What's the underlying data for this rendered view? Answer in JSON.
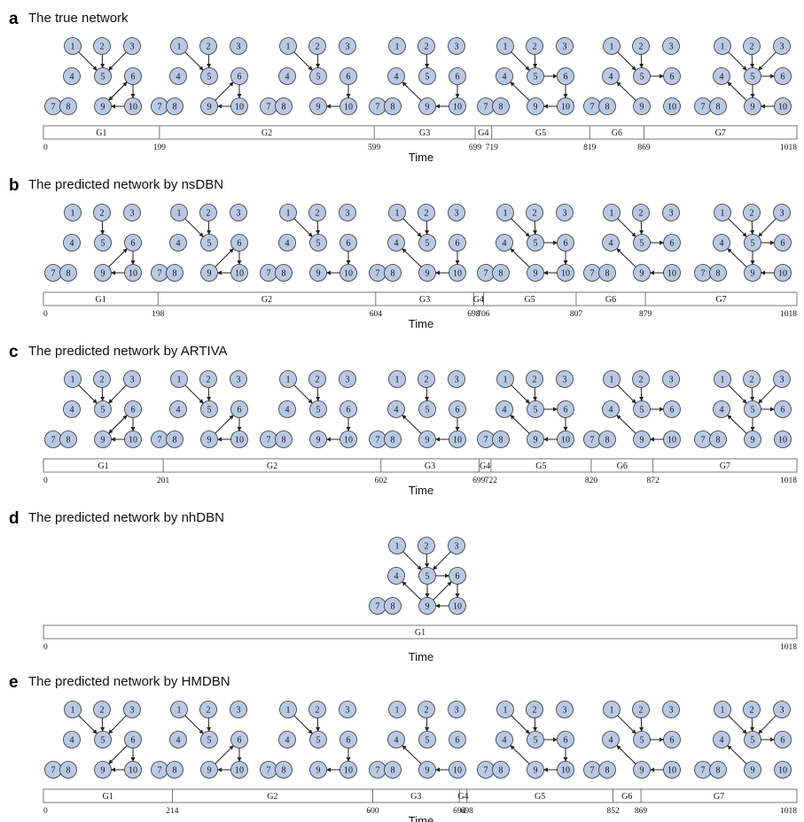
{
  "node_ids": [
    "1",
    "2",
    "3",
    "4",
    "5",
    "6",
    "7",
    "8",
    "9",
    "10"
  ],
  "colors": {
    "node_fill": "#b9c9e5",
    "node_stroke": "#333333",
    "edge": "#222222",
    "bar_stroke": "#555555"
  },
  "axis_label": "Time",
  "panels": [
    {
      "letter": "a",
      "title": "The true network",
      "segments": [
        {
          "label": "G1",
          "edges": [
            [
              1,
              5
            ],
            [
              2,
              5
            ],
            [
              3,
              5
            ],
            [
              6,
              9
            ],
            [
              6,
              10
            ],
            [
              9,
              6
            ],
            [
              10,
              9
            ]
          ]
        },
        {
          "label": "G2",
          "edges": [
            [
              2,
              5
            ],
            [
              1,
              5
            ],
            [
              9,
              6
            ],
            [
              6,
              10
            ],
            [
              10,
              9
            ]
          ]
        },
        {
          "label": "G3",
          "edges": [
            [
              1,
              5
            ],
            [
              2,
              5
            ],
            [
              6,
              10
            ],
            [
              10,
              9
            ]
          ]
        },
        {
          "label": "G4",
          "edges": [
            [
              2,
              5
            ],
            [
              9,
              4
            ],
            [
              6,
              10
            ],
            [
              10,
              9
            ]
          ]
        },
        {
          "label": "G5",
          "edges": [
            [
              1,
              5
            ],
            [
              2,
              5
            ],
            [
              5,
              6
            ],
            [
              9,
              4
            ],
            [
              6,
              10
            ],
            [
              10,
              9
            ]
          ]
        },
        {
          "label": "G6",
          "edges": [
            [
              2,
              5
            ],
            [
              5,
              6
            ],
            [
              9,
              4
            ],
            [
              1,
              5
            ]
          ]
        },
        {
          "label": "G7",
          "edges": [
            [
              1,
              5
            ],
            [
              2,
              5
            ],
            [
              3,
              5
            ],
            [
              5,
              6
            ],
            [
              5,
              9
            ],
            [
              9,
              4
            ],
            [
              10,
              9
            ]
          ]
        }
      ],
      "ticks": [
        "0",
        "199",
        "599",
        "699",
        "719",
        "819",
        "869",
        "1018"
      ]
    },
    {
      "letter": "b",
      "title": "The predicted network by nsDBN",
      "segments": [
        {
          "label": "G1",
          "edges": [
            [
              2,
              5
            ],
            [
              9,
              6
            ],
            [
              6,
              10
            ],
            [
              10,
              9
            ]
          ]
        },
        {
          "label": "G2",
          "edges": [
            [
              1,
              5
            ],
            [
              2,
              5
            ],
            [
              9,
              6
            ],
            [
              6,
              10
            ],
            [
              10,
              9
            ]
          ]
        },
        {
          "label": "G3",
          "edges": [
            [
              1,
              5
            ],
            [
              2,
              5
            ],
            [
              6,
              10
            ],
            [
              10,
              9
            ]
          ]
        },
        {
          "label": "G4",
          "edges": [
            [
              1,
              5
            ],
            [
              2,
              5
            ],
            [
              9,
              4
            ],
            [
              6,
              10
            ],
            [
              10,
              9
            ]
          ]
        },
        {
          "label": "G5",
          "edges": [
            [
              1,
              5
            ],
            [
              2,
              5
            ],
            [
              5,
              6
            ],
            [
              9,
              4
            ],
            [
              6,
              10
            ],
            [
              10,
              9
            ]
          ]
        },
        {
          "label": "G6",
          "edges": [
            [
              1,
              5
            ],
            [
              2,
              5
            ],
            [
              5,
              6
            ],
            [
              9,
              4
            ],
            [
              10,
              9
            ]
          ]
        },
        {
          "label": "G7",
          "edges": [
            [
              1,
              5
            ],
            [
              2,
              5
            ],
            [
              3,
              5
            ],
            [
              5,
              6
            ],
            [
              5,
              9
            ],
            [
              9,
              4
            ],
            [
              10,
              9
            ]
          ]
        }
      ],
      "ticks": [
        "0",
        "198",
        "604",
        "698",
        "706",
        "807",
        "879",
        "1018"
      ]
    },
    {
      "letter": "c",
      "title": "The predicted network by ARTIVA",
      "segments": [
        {
          "label": "G1",
          "edges": [
            [
              1,
              5
            ],
            [
              2,
              5
            ],
            [
              3,
              5
            ],
            [
              6,
              9
            ],
            [
              6,
              10
            ],
            [
              9,
              6
            ],
            [
              10,
              9
            ]
          ]
        },
        {
          "label": "G2",
          "edges": [
            [
              1,
              5
            ],
            [
              2,
              5
            ],
            [
              9,
              6
            ],
            [
              6,
              10
            ],
            [
              10,
              9
            ]
          ]
        },
        {
          "label": "G3",
          "edges": [
            [
              1,
              5
            ],
            [
              2,
              5
            ],
            [
              6,
              10
            ],
            [
              10,
              9
            ]
          ]
        },
        {
          "label": "G4",
          "edges": [
            [
              2,
              5
            ],
            [
              9,
              4
            ],
            [
              6,
              10
            ],
            [
              10,
              9
            ]
          ]
        },
        {
          "label": "G5",
          "edges": [
            [
              1,
              5
            ],
            [
              2,
              5
            ],
            [
              5,
              6
            ],
            [
              9,
              4
            ],
            [
              6,
              10
            ],
            [
              10,
              9
            ]
          ]
        },
        {
          "label": "G6",
          "edges": [
            [
              1,
              5
            ],
            [
              2,
              5
            ],
            [
              5,
              6
            ],
            [
              9,
              4
            ],
            [
              10,
              9
            ]
          ]
        },
        {
          "label": "G7",
          "edges": [
            [
              1,
              5
            ],
            [
              2,
              5
            ],
            [
              3,
              5
            ],
            [
              5,
              6
            ],
            [
              5,
              9
            ],
            [
              9,
              4
            ]
          ]
        }
      ],
      "ticks": [
        "0",
        "201",
        "602",
        "699",
        "722",
        "820",
        "872",
        "1018"
      ]
    },
    {
      "letter": "d",
      "title": "The predicted network by nhDBN",
      "segments": [
        {
          "label": "G1",
          "edges": [
            [
              1,
              5
            ],
            [
              2,
              5
            ],
            [
              3,
              5
            ],
            [
              5,
              6
            ],
            [
              9,
              4
            ],
            [
              6,
              10
            ],
            [
              10,
              9
            ],
            [
              9,
              6
            ],
            [
              5,
              9
            ]
          ]
        }
      ],
      "ticks": [
        "0",
        "1018"
      ]
    },
    {
      "letter": "e",
      "title": "The predicted network by HMDBN",
      "segments": [
        {
          "label": "G1",
          "edges": [
            [
              1,
              5
            ],
            [
              2,
              5
            ],
            [
              3,
              5
            ],
            [
              6,
              9
            ],
            [
              6,
              10
            ],
            [
              10,
              9
            ]
          ]
        },
        {
          "label": "G2",
          "edges": [
            [
              1,
              5
            ],
            [
              2,
              5
            ],
            [
              9,
              6
            ],
            [
              6,
              10
            ],
            [
              10,
              9
            ]
          ]
        },
        {
          "label": "G3",
          "edges": [
            [
              1,
              5
            ],
            [
              2,
              5
            ],
            [
              6,
              10
            ],
            [
              10,
              9
            ]
          ]
        },
        {
          "label": "G4",
          "edges": [
            [
              2,
              5
            ],
            [
              9,
              4
            ],
            [
              10,
              9
            ]
          ]
        },
        {
          "label": "G5",
          "edges": [
            [
              1,
              5
            ],
            [
              2,
              5
            ],
            [
              5,
              6
            ],
            [
              9,
              4
            ],
            [
              6,
              10
            ],
            [
              10,
              9
            ]
          ]
        },
        {
          "label": "G6",
          "edges": [
            [
              1,
              5
            ],
            [
              2,
              5
            ],
            [
              5,
              6
            ],
            [
              9,
              4
            ],
            [
              10,
              9
            ]
          ]
        },
        {
          "label": "G7",
          "edges": [
            [
              1,
              5
            ],
            [
              2,
              5
            ],
            [
              3,
              5
            ],
            [
              5,
              6
            ],
            [
              9,
              4
            ]
          ]
        }
      ],
      "ticks": [
        "0",
        "214",
        "600",
        "694",
        "698",
        "852",
        "869",
        "1018"
      ]
    }
  ]
}
